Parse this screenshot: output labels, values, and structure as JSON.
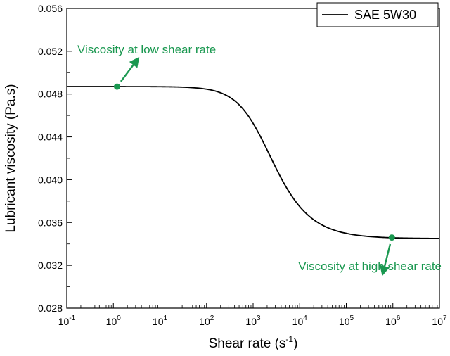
{
  "chart_data": {
    "type": "line",
    "xlabel": "Shear rate (s",
    "xlabel_sup": "-1",
    "xlabel_close": ")",
    "ylabel": "Lubricant viscosity (Pa.s)",
    "x_scale": "log",
    "xlim": [
      0.1,
      10000000
    ],
    "ylim": [
      0.028,
      0.056
    ],
    "x_ticks": [
      {
        "value": 0.1,
        "base": "10",
        "exp": "-1"
      },
      {
        "value": 1,
        "base": "10",
        "exp": "0"
      },
      {
        "value": 10,
        "base": "10",
        "exp": "1"
      },
      {
        "value": 100,
        "base": "10",
        "exp": "2"
      },
      {
        "value": 1000,
        "base": "10",
        "exp": "3"
      },
      {
        "value": 10000,
        "base": "10",
        "exp": "4"
      },
      {
        "value": 100000,
        "base": "10",
        "exp": "5"
      },
      {
        "value": 1000000,
        "base": "10",
        "exp": "6"
      },
      {
        "value": 10000000,
        "base": "10",
        "exp": "7"
      }
    ],
    "y_ticks": [
      {
        "value": 0.028,
        "label": "0.028"
      },
      {
        "value": 0.032,
        "label": "0.032"
      },
      {
        "value": 0.036,
        "label": "0.036"
      },
      {
        "value": 0.04,
        "label": "0.040"
      },
      {
        "value": 0.044,
        "label": "0.044"
      },
      {
        "value": 0.048,
        "label": "0.048"
      },
      {
        "value": 0.052,
        "label": "0.052"
      },
      {
        "value": 0.056,
        "label": "0.056"
      }
    ],
    "grid": false,
    "legend_position": "top-right",
    "series": [
      {
        "name": "SAE 5W30",
        "color": "#000000",
        "model": "carreau-yasuda",
        "params": {
          "eta0": 0.0487,
          "eta_inf": 0.0345,
          "lambda": 0.00064,
          "a": 1.3,
          "n": 0.19
        },
        "points": [
          {
            "x": 0.1,
            "y": 0.0487
          },
          {
            "x": 1,
            "y": 0.0487
          },
          {
            "x": 10,
            "y": 0.0486
          },
          {
            "x": 100,
            "y": 0.048
          },
          {
            "x": 1000,
            "y": 0.0434
          },
          {
            "x": 10000,
            "y": 0.0365
          },
          {
            "x": 100000,
            "y": 0.0348
          },
          {
            "x": 1000000,
            "y": 0.0345
          },
          {
            "x": 10000000,
            "y": 0.0345
          }
        ]
      }
    ],
    "annotations": [
      {
        "text": "Viscosity at low shear rate",
        "point": {
          "x": 1.2,
          "y": 0.0487
        },
        "color": "#1a9850"
      },
      {
        "text": "Viscosity at high shear rate",
        "point": {
          "x": 950000,
          "y": 0.0346
        },
        "color": "#1a9850"
      }
    ]
  }
}
